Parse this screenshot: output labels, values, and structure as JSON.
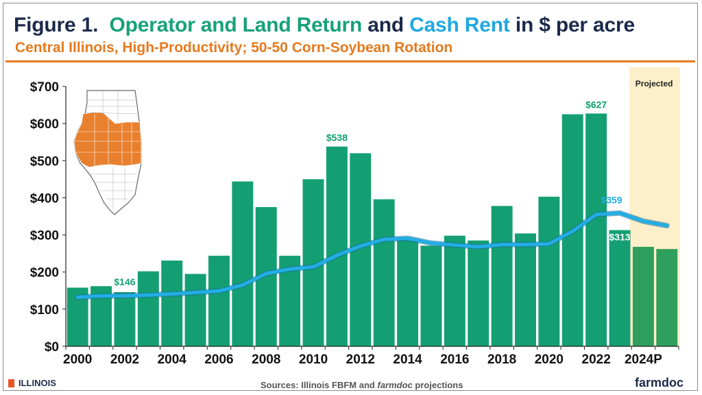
{
  "header": {
    "title_prefix": "Figure 1.",
    "title_part1": "Operator and Land Return",
    "title_and": "and",
    "title_part2": "Cash Rent",
    "title_suffix": "in $ per acre",
    "subtitle": "Central Illinois, High-Productivity; 50-50 Corn-Soybean Rotation"
  },
  "colors": {
    "bar": "#149f72",
    "bar_projected": "#2e9f5c",
    "rent_line": "#22ade4",
    "projected_band": "#fdefc9",
    "title_dark": "#1b2a4a",
    "accent_orange": "#e57a1e"
  },
  "chart_data": {
    "type": "bar",
    "categories": [
      "2000",
      "2001",
      "2002",
      "2003",
      "2004",
      "2005",
      "2006",
      "2007",
      "2008",
      "2009",
      "2010",
      "2011",
      "2012",
      "2013",
      "2014",
      "2015",
      "2016",
      "2017",
      "2018",
      "2019",
      "2020",
      "2021",
      "2022",
      "2023",
      "2024P",
      "2025P"
    ],
    "x_tick_labels": [
      "2000",
      "2002",
      "2004",
      "2006",
      "2008",
      "2010",
      "2012",
      "2014",
      "2016",
      "2018",
      "2020",
      "2022",
      "2024P"
    ],
    "series": [
      {
        "type": "bar",
        "values": [
          158,
          162,
          146,
          202,
          231,
          195,
          244,
          444,
          375,
          244,
          450,
          538,
          520,
          396,
          290,
          271,
          298,
          285,
          378,
          304,
          403,
          625,
          627,
          313,
          268,
          262
        ]
      },
      {
        "type": "line",
        "values": [
          132,
          136,
          136,
          138,
          141,
          145,
          149,
          165,
          196,
          208,
          214,
          245,
          270,
          288,
          291,
          278,
          273,
          268,
          274,
          274,
          276,
          310,
          355,
          359,
          337,
          325
        ]
      }
    ],
    "projected_from": "2024P",
    "projected_label": "Projected",
    "data_labels": [
      {
        "category": "2002",
        "text": "$146"
      },
      {
        "category": "2011",
        "text": "$538"
      },
      {
        "category": "2022",
        "text": "$627"
      },
      {
        "category": "2023",
        "text": "$359"
      },
      {
        "category": "2023",
        "text": "$313"
      }
    ],
    "y_tick_labels": [
      "$0",
      "$100",
      "$200",
      "$300",
      "$400",
      "$500",
      "$600",
      "$700"
    ],
    "ylim": [
      0,
      700
    ],
    "grid": false,
    "xlabel": "",
    "ylabel": ""
  },
  "footer": {
    "logo_text": "ILLINOIS",
    "sources_prefix": "Sources: Illinois FBFM and",
    "sources_em": "farmdoc",
    "sources_suffix": "projections",
    "brand": "farmdoc"
  }
}
